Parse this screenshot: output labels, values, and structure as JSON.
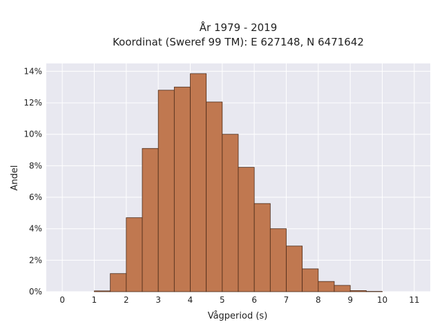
{
  "chart_data": {
    "type": "bar",
    "title": [
      "År 1979 - 2019",
      "Koordinat (Sweref 99 TM): E 627148, N 6471642"
    ],
    "xlabel": "Vågperiod (s)",
    "ylabel": "Andel",
    "bin_width": 0.5,
    "bin_starts": [
      1.0,
      1.5,
      2.0,
      2.5,
      3.0,
      3.5,
      4.0,
      4.5,
      5.0,
      5.5,
      6.0,
      6.5,
      7.0,
      7.5,
      8.0,
      8.5,
      9.0,
      9.5
    ],
    "values": [
      0.05,
      1.15,
      4.7,
      9.1,
      12.8,
      13.0,
      13.85,
      12.05,
      10.0,
      7.9,
      5.6,
      4.0,
      2.9,
      1.45,
      0.65,
      0.4,
      0.07,
      0.02
    ],
    "xlim": [
      -0.5,
      11.5
    ],
    "ylim": [
      0,
      14.5
    ],
    "xticks": [
      0,
      1,
      2,
      3,
      4,
      5,
      6,
      7,
      8,
      9,
      10,
      11
    ],
    "yticks": [
      0,
      2,
      4,
      6,
      8,
      10,
      12,
      14
    ],
    "ytick_suffix": "%",
    "grid": true,
    "colors": {
      "bar": "#c07850",
      "background": "#e8e8f0",
      "grid": "#ffffff"
    }
  }
}
